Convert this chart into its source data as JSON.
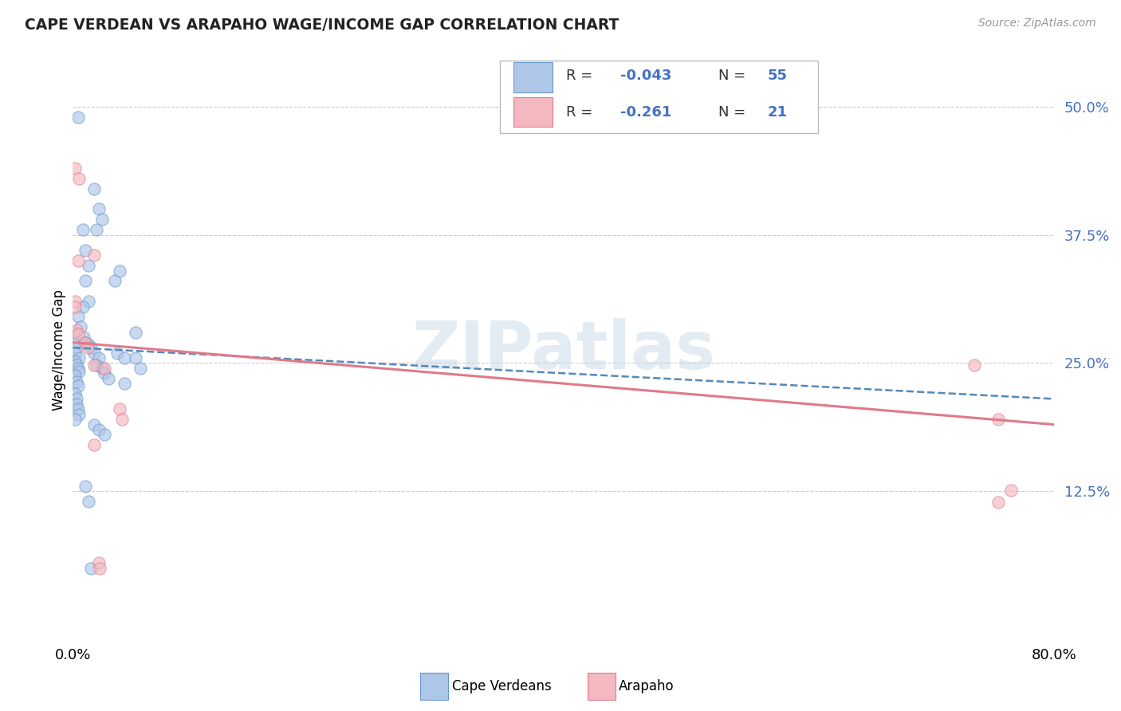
{
  "title": "CAPE VERDEAN VS ARAPAHO WAGE/INCOME GAP CORRELATION CHART",
  "source": "Source: ZipAtlas.com",
  "ylabel": "Wage/Income Gap",
  "xlim": [
    0.0,
    0.8
  ],
  "ylim": [
    -0.02,
    0.545
  ],
  "ytick_values": [
    0.125,
    0.25,
    0.375,
    0.5
  ],
  "ytick_labels": [
    "12.5%",
    "25.0%",
    "37.5%",
    "50.0%"
  ],
  "xtick_values": [
    0.0,
    0.8
  ],
  "xtick_labels": [
    "0.0%",
    "80.0%"
  ],
  "watermark": "ZIPatlas",
  "blue_scatter_x": [
    0.004,
    0.008,
    0.01,
    0.013,
    0.01,
    0.013,
    0.017,
    0.021,
    0.019,
    0.024,
    0.008,
    0.004,
    0.006,
    0.002,
    0.004,
    0.003,
    0.002,
    0.005,
    0.002,
    0.003,
    0.004,
    0.005,
    0.002,
    0.003,
    0.004,
    0.002,
    0.003,
    0.003,
    0.004,
    0.005,
    0.002,
    0.009,
    0.01,
    0.013,
    0.015,
    0.017,
    0.021,
    0.019,
    0.024,
    0.026,
    0.029,
    0.017,
    0.021,
    0.026,
    0.034,
    0.038,
    0.036,
    0.042,
    0.042,
    0.051,
    0.051,
    0.055,
    0.01,
    0.013,
    0.015
  ],
  "blue_scatter_y": [
    0.49,
    0.38,
    0.36,
    0.345,
    0.33,
    0.31,
    0.42,
    0.4,
    0.38,
    0.39,
    0.305,
    0.295,
    0.285,
    0.28,
    0.27,
    0.265,
    0.26,
    0.255,
    0.252,
    0.248,
    0.245,
    0.242,
    0.238,
    0.232,
    0.228,
    0.22,
    0.215,
    0.21,
    0.205,
    0.2,
    0.195,
    0.275,
    0.27,
    0.268,
    0.265,
    0.26,
    0.255,
    0.248,
    0.245,
    0.24,
    0.235,
    0.19,
    0.185,
    0.18,
    0.33,
    0.34,
    0.26,
    0.255,
    0.23,
    0.28,
    0.255,
    0.245,
    0.13,
    0.115,
    0.05
  ],
  "pink_scatter_x": [
    0.002,
    0.005,
    0.004,
    0.017,
    0.002,
    0.002,
    0.003,
    0.004,
    0.01,
    0.012,
    0.017,
    0.026,
    0.038,
    0.04,
    0.017,
    0.021,
    0.022,
    0.735,
    0.755,
    0.765,
    0.755
  ],
  "pink_scatter_y": [
    0.44,
    0.43,
    0.35,
    0.355,
    0.31,
    0.305,
    0.282,
    0.278,
    0.27,
    0.265,
    0.248,
    0.245,
    0.205,
    0.195,
    0.17,
    0.055,
    0.05,
    0.248,
    0.195,
    0.126,
    0.114
  ],
  "blue_trend_x": [
    0.0,
    0.8
  ],
  "blue_trend_y": [
    0.265,
    0.215
  ],
  "pink_trend_x": [
    0.0,
    0.8
  ],
  "pink_trend_y": [
    0.27,
    0.19
  ],
  "scatter_size": 120,
  "scatter_alpha": 0.65,
  "blue_face_color": "#aec6e8",
  "blue_edge_color": "#6699cc",
  "pink_face_color": "#f4b8c1",
  "pink_edge_color": "#e07a8a",
  "blue_line_color": "#5588bb",
  "pink_line_color": "#e07a8a",
  "grid_color": "#cccccc",
  "bg_color": "#ffffff",
  "legend_blue_val": "-0.043",
  "legend_blue_n": "55",
  "legend_pink_val": "-0.261",
  "legend_pink_n": "21",
  "bottom_legend_labels": [
    "Cape Verdeans",
    "Arapaho"
  ],
  "tick_color": "#4472c4"
}
